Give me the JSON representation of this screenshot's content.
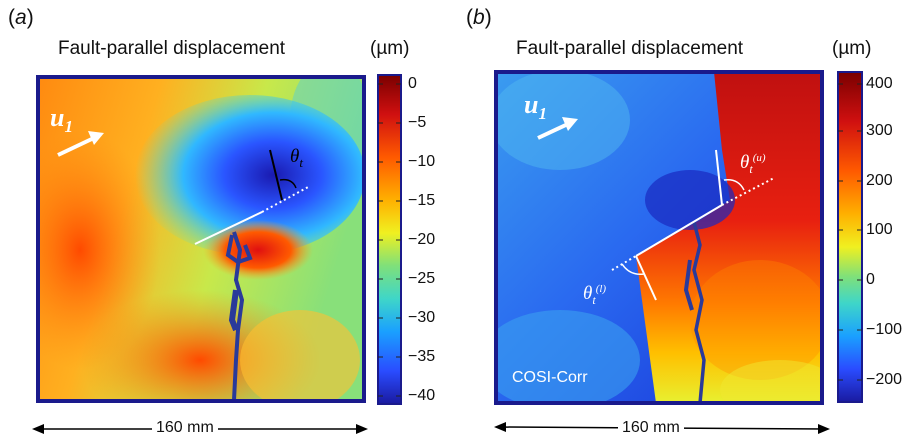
{
  "panel_a": {
    "label": "(a)",
    "label_letter": "a",
    "title": "Fault-parallel displacement",
    "unit": "(µm)",
    "vector_label": "u",
    "vector_subscript": "1",
    "angle_label": "θ",
    "angle_subscript": "t",
    "colorbar_ticks": [
      "0",
      "−5",
      "−10",
      "−15",
      "−20",
      "−25",
      "−30",
      "−35",
      "−40"
    ],
    "scale_label": "160 mm"
  },
  "panel_b": {
    "label": "(b)",
    "label_letter": "b",
    "title": "Fault-parallel displacement",
    "unit": "(µm)",
    "vector_label": "u",
    "vector_subscript": "1",
    "angle_upper_label": "θ",
    "angle_upper_sub": "t",
    "angle_upper_sup": "(u)",
    "angle_lower_label": "θ",
    "angle_lower_sub": "t",
    "angle_lower_sup": "(l)",
    "watermark": "COSI-Corr",
    "colorbar_ticks": [
      "400",
      "300",
      "200",
      "100",
      "0",
      "−100",
      "−200"
    ],
    "scale_label": "160 mm"
  },
  "colors": {
    "frame": "#1a1a8c",
    "colormap": [
      "#7a0000",
      "#d01010",
      "#ff5a00",
      "#ffb000",
      "#f5f000",
      "#9be05a",
      "#3fd6c8",
      "#1aa0ff",
      "#2a4cff",
      "#1a1aa0"
    ]
  }
}
